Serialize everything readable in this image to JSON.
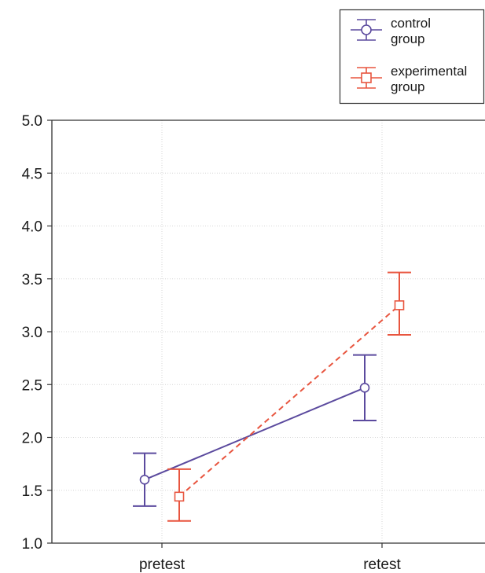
{
  "chart_data": {
    "type": "line",
    "categories": [
      "pretest",
      "retest"
    ],
    "ylim": [
      1.0,
      5.0
    ],
    "yticks": [
      "1.0",
      "1.5",
      "2.0",
      "2.5",
      "3.0",
      "3.5",
      "4.0",
      "4.5",
      "5.0"
    ],
    "grid": true,
    "legend_position": "top-right",
    "series": [
      {
        "name_lines": [
          "control",
          "group"
        ],
        "color": "#5b4a9e",
        "marker": "circle",
        "line_style": "solid",
        "values": [
          1.6,
          2.47
        ],
        "error_low": [
          1.35,
          2.16
        ],
        "error_high": [
          1.85,
          2.78
        ]
      },
      {
        "name_lines": [
          "experimental",
          "group"
        ],
        "color": "#e8553f",
        "marker": "square",
        "line_style": "dashed",
        "values": [
          1.44,
          3.25
        ],
        "error_low": [
          1.21,
          2.97
        ],
        "error_high": [
          1.7,
          3.56
        ]
      }
    ]
  }
}
